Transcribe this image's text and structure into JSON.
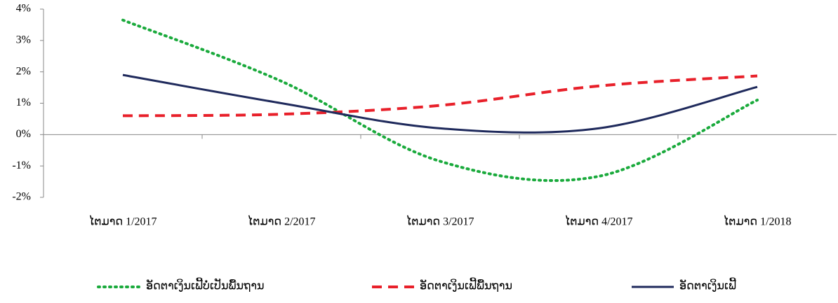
{
  "chart_data": {
    "type": "line",
    "categories": [
      "ໄຕມາດ 1/2017",
      "ໄຕມາດ 2/2017",
      "ໄຕມາດ 3/2017",
      "ໄຕມາດ 4/2017",
      "ໄຕມາດ 1/2018"
    ],
    "series": [
      {
        "name": "ອັດຕາເງິນເຟີ້ບໍ່ເປັນພື້ນຖານ",
        "color": "#1aaa3c",
        "dash": "dotted",
        "values": [
          3.65,
          1.7,
          -0.85,
          -1.33,
          1.1
        ]
      },
      {
        "name": "ອັດຕາເງິນເຟີ້ພື້ນຖານ",
        "color": "#e8202a",
        "dash": "dashed",
        "values": [
          0.6,
          0.65,
          0.93,
          1.55,
          1.87
        ]
      },
      {
        "name": "ອັດຕາເງິນເຟີ້",
        "color": "#1f2a5c",
        "dash": "solid",
        "values": [
          1.9,
          1.0,
          0.2,
          0.2,
          1.52
        ]
      }
    ],
    "ylim": [
      -2,
      4
    ],
    "yticks": [
      {
        "value": -2,
        "label": "-2%"
      },
      {
        "value": -1,
        "label": "-1%"
      },
      {
        "value": 0,
        "label": "0%"
      },
      {
        "value": 1,
        "label": "1%"
      },
      {
        "value": 2,
        "label": "2%"
      },
      {
        "value": 3,
        "label": "3%"
      },
      {
        "value": 4,
        "label": "4%"
      }
    ],
    "grid": false,
    "legend": "bottom"
  }
}
